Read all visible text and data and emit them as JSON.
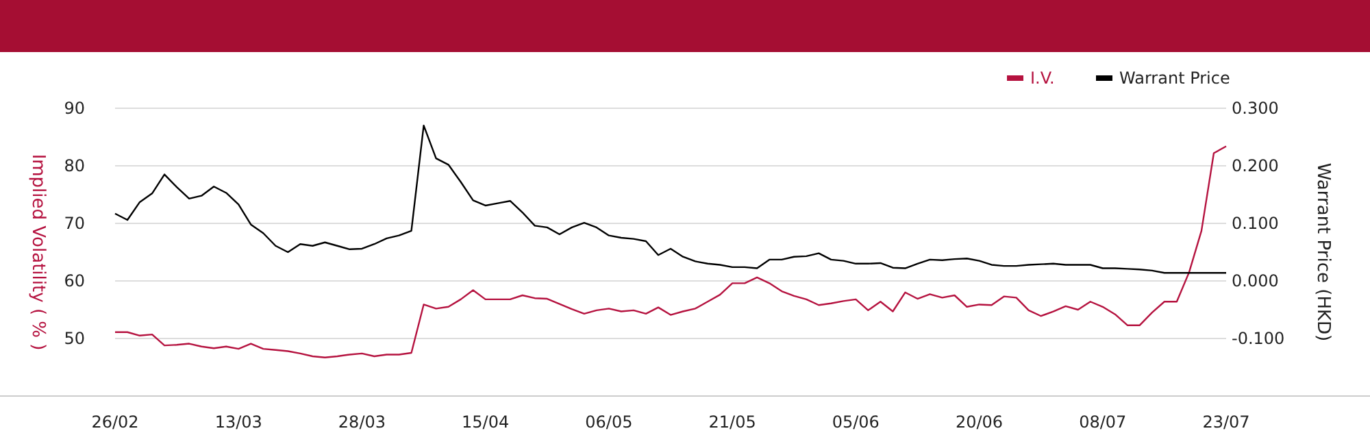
{
  "chart_data": {
    "type": "line",
    "categories": [
      "26/02",
      null,
      null,
      null,
      null,
      null,
      null,
      null,
      null,
      null,
      "13/03",
      null,
      null,
      null,
      null,
      null,
      null,
      null,
      null,
      null,
      "28/03",
      null,
      null,
      null,
      null,
      null,
      null,
      null,
      null,
      null,
      "15/04",
      null,
      null,
      null,
      null,
      null,
      null,
      null,
      null,
      null,
      "06/05",
      null,
      null,
      null,
      null,
      null,
      null,
      null,
      null,
      null,
      "21/05",
      null,
      null,
      null,
      null,
      null,
      null,
      null,
      null,
      null,
      "05/06",
      null,
      null,
      null,
      null,
      null,
      null,
      null,
      null,
      null,
      "20/06",
      null,
      null,
      null,
      null,
      null,
      null,
      null,
      null,
      null,
      "08/07",
      null,
      null,
      null,
      null,
      null,
      null,
      null,
      null,
      null,
      "23/07"
    ],
    "series": [
      {
        "name": "I.V.",
        "color": "#b5123f",
        "values": [
          51.1,
          51.1,
          50.5,
          50.7,
          48.8,
          48.9,
          49.1,
          48.6,
          48.3,
          48.6,
          48.2,
          49.1,
          48.2,
          48.0,
          47.8,
          47.4,
          46.9,
          46.7,
          46.9,
          47.2,
          47.4,
          46.9,
          47.2,
          47.2,
          47.5,
          55.9,
          55.2,
          55.5,
          56.8,
          58.4,
          56.8,
          56.8,
          56.8,
          57.5,
          57.0,
          56.9,
          56.0,
          55.1,
          54.3,
          54.9,
          55.2,
          54.7,
          54.9,
          54.3,
          55.4,
          54.1,
          54.7,
          55.2,
          56.4,
          57.6,
          59.6,
          59.6,
          60.6,
          59.6,
          58.2,
          57.4,
          56.8,
          55.8,
          56.1,
          56.5,
          56.8,
          54.9,
          56.4,
          54.7,
          58.0,
          56.9,
          57.7,
          57.1,
          57.5,
          55.5,
          55.9,
          55.8,
          57.3,
          57.1,
          54.9,
          53.9,
          54.7,
          55.6,
          55.0,
          56.4,
          55.5,
          54.2,
          52.3,
          52.3,
          54.5,
          56.4,
          56.4,
          61.5,
          68.7,
          82.2,
          83.4
        ]
      },
      {
        "name": "Warrant Price",
        "color": "#000000",
        "axis": "y2",
        "values": [
          0.117,
          0.106,
          0.137,
          0.152,
          0.185,
          0.163,
          0.143,
          0.148,
          0.164,
          0.153,
          0.133,
          0.098,
          0.083,
          0.061,
          0.05,
          0.064,
          0.061,
          0.067,
          0.061,
          0.055,
          0.056,
          0.064,
          0.074,
          0.079,
          0.087,
          0.27,
          0.213,
          0.202,
          0.172,
          0.14,
          0.131,
          0.135,
          0.139,
          0.119,
          0.096,
          0.093,
          0.081,
          0.093,
          0.101,
          0.093,
          0.079,
          0.075,
          0.073,
          0.069,
          0.045,
          0.056,
          0.042,
          0.034,
          0.03,
          0.028,
          0.024,
          0.024,
          0.022,
          0.037,
          0.037,
          0.042,
          0.043,
          0.048,
          0.037,
          0.035,
          0.03,
          0.03,
          0.031,
          0.023,
          0.022,
          0.03,
          0.037,
          0.036,
          0.038,
          0.039,
          0.035,
          0.028,
          0.026,
          0.026,
          0.028,
          0.029,
          0.03,
          0.028,
          0.028,
          0.028,
          0.022,
          0.022,
          0.021,
          0.02,
          0.018,
          0.014,
          0.014,
          0.014,
          0.014,
          0.014,
          0.014
        ]
      }
    ],
    "ylabel": "Implied Volatility ( % )",
    "y2label": "Warrant Price (HKD)",
    "ylim": [
      40,
      90
    ],
    "yticks": [
      50,
      60,
      70,
      80,
      90
    ],
    "y2lim": [
      -0.2,
      0.3
    ],
    "y2ticks": [
      {
        "value": -0.1,
        "label": "-0.100"
      },
      {
        "value": 0,
        "label": "0.000"
      },
      {
        "value": 0.1,
        "label": "0.100"
      },
      {
        "value": 0.2,
        "label": "0.200"
      },
      {
        "value": 0.3,
        "label": "0.300"
      }
    ],
    "grid": "y",
    "legend": "top right",
    "marker": "none",
    "line_style": "solid"
  }
}
